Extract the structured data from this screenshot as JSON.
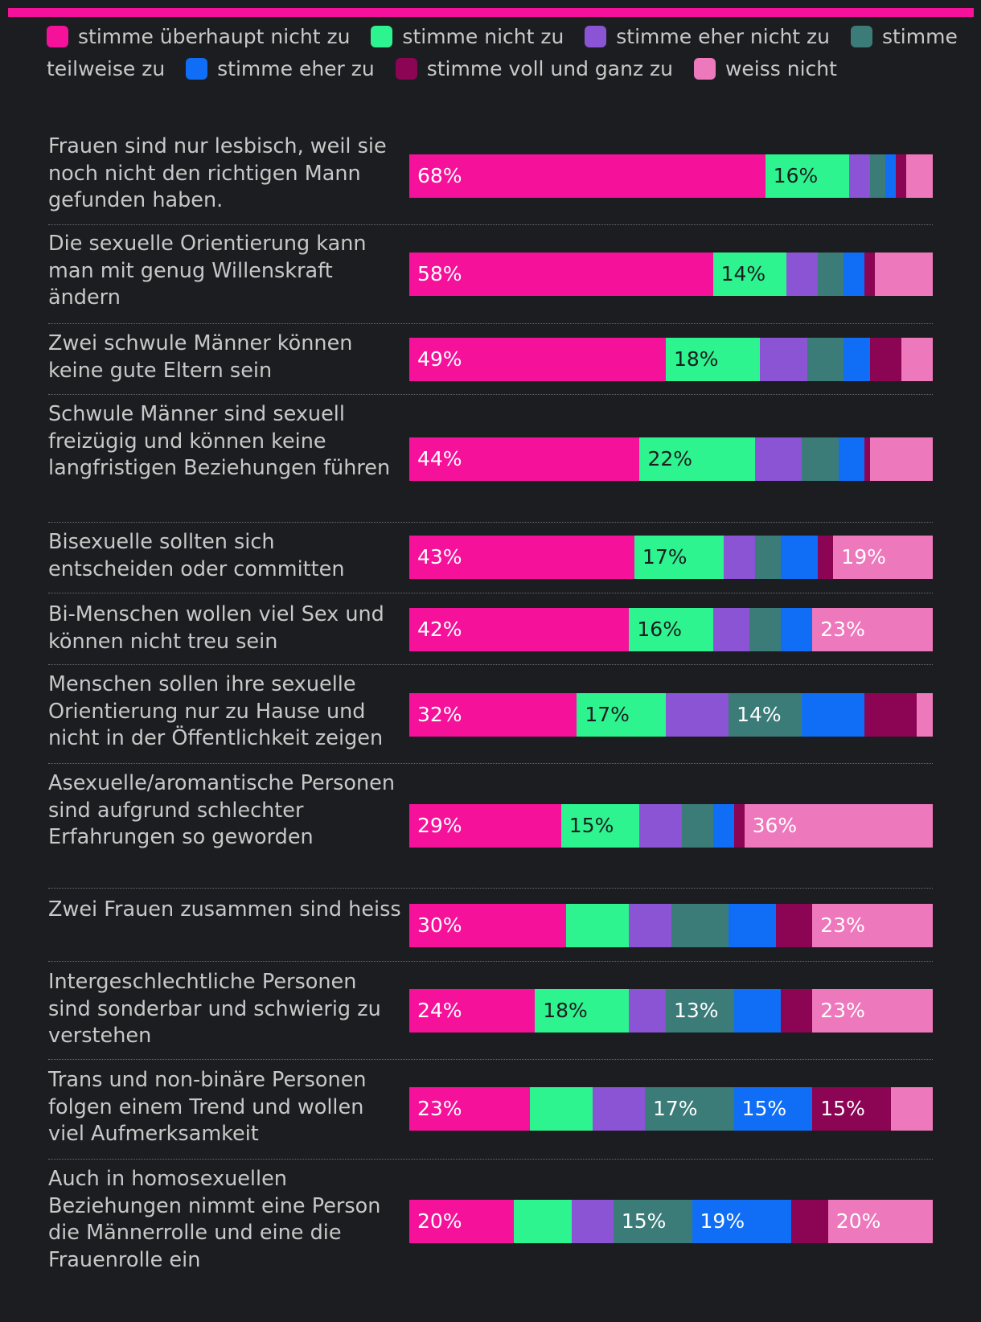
{
  "chart_data": {
    "type": "bar",
    "orientation": "horizontal",
    "stacked": true,
    "normalized": "percent",
    "categories": [
      "Frauen sind nur lesbisch, weil sie noch nicht den richtigen Mann gefunden haben.",
      "Die sexuelle Orientierung kann man mit genug Willenskraft ändern",
      "Zwei schwule Männer können keine gute Eltern sein",
      "Schwule Männer sind sexuell freizügig und können keine langfristigen Beziehungen führen",
      "Bisexuelle sollten sich entscheiden oder committen",
      "Bi-Menschen wollen viel Sex und können nicht treu sein",
      "Menschen sollen ihre sexuelle Orientierung nur zu Hause und nicht in der Öffentlichkeit zeigen",
      "Asexuelle/aromantische Personen sind aufgrund schlechter Erfahrungen so geworden",
      "Zwei Frauen zusammen sind heiss",
      "Intergeschlechtliche Personen sind sonderbar und schwierig zu verstehen",
      "Trans und non-binäre Personen folgen einem Trend und wollen viel Aufmerksamkeit",
      "Auch in homosexuellen Beziehungen nimmt eine Person die Männerrolle und eine die Frauenrolle ein"
    ],
    "series": [
      {
        "name": "stimme überhaupt nicht zu",
        "color": "#f5119a",
        "label_color": "#ffffff",
        "values": [
          68,
          58,
          49,
          44,
          43,
          42,
          32,
          29,
          30,
          24,
          23,
          20
        ],
        "labels": [
          "68%",
          "58%",
          "49%",
          "44%",
          "43%",
          "42%",
          "32%",
          "29%",
          "30%",
          "24%",
          "23%",
          "20%"
        ]
      },
      {
        "name": "stimme nicht zu",
        "color": "#2ef48f",
        "label_color": "#1c1d20",
        "values": [
          16,
          14,
          18,
          22,
          17,
          16,
          17,
          15,
          12,
          18,
          12,
          11
        ],
        "labels": [
          "16%",
          "14%",
          "18%",
          "22%",
          "17%",
          "16%",
          "17%",
          "15%",
          "",
          "18%",
          "",
          ""
        ]
      },
      {
        "name": "stimme eher nicht zu",
        "color": "#8b54d4",
        "label_color": "#ffffff",
        "values": [
          4,
          6,
          9,
          9,
          6,
          7,
          12,
          8,
          8,
          7,
          10,
          8
        ],
        "labels": [
          "",
          "",
          "",
          "",
          "",
          "",
          "",
          "",
          "",
          "",
          "",
          ""
        ]
      },
      {
        "name": "stimme teilweise zu",
        "color": "#3b7b78",
        "label_color": "#ffffff",
        "values": [
          3,
          5,
          7,
          7,
          5,
          6,
          14,
          6,
          11,
          13,
          17,
          15
        ],
        "labels": [
          "",
          "",
          "",
          "",
          "",
          "",
          "14%",
          "",
          "",
          "13%",
          "17%",
          "15%"
        ]
      },
      {
        "name": "stimme eher zu",
        "color": "#0f6ef5",
        "label_color": "#ffffff",
        "values": [
          2,
          4,
          5,
          5,
          7,
          6,
          12,
          4,
          9,
          9,
          15,
          19
        ],
        "labels": [
          "",
          "",
          "",
          "",
          "",
          "",
          "",
          "",
          "",
          "",
          "15%",
          "19%"
        ]
      },
      {
        "name": "stimme voll und ganz zu",
        "color": "#8c0454",
        "label_color": "#ffffff",
        "values": [
          2,
          2,
          6,
          1,
          3,
          0,
          10,
          2,
          7,
          6,
          15,
          7
        ],
        "labels": [
          "",
          "",
          "",
          "",
          "",
          "",
          "",
          "",
          "",
          "",
          "15%",
          ""
        ]
      },
      {
        "name": "weiss nicht",
        "color": "#ee78bc",
        "label_color": "#ffffff",
        "values": [
          5,
          11,
          6,
          12,
          19,
          23,
          3,
          36,
          23,
          23,
          8,
          20
        ],
        "labels": [
          "",
          "",
          "",
          "",
          "19%",
          "23%",
          "",
          "36%",
          "23%",
          "23%",
          "",
          "20%"
        ]
      }
    ],
    "title": "",
    "xlabel": "",
    "ylabel": "",
    "xlim": [
      0,
      100
    ],
    "legend_position": "top",
    "accent_bar_color": "#f5119a"
  }
}
